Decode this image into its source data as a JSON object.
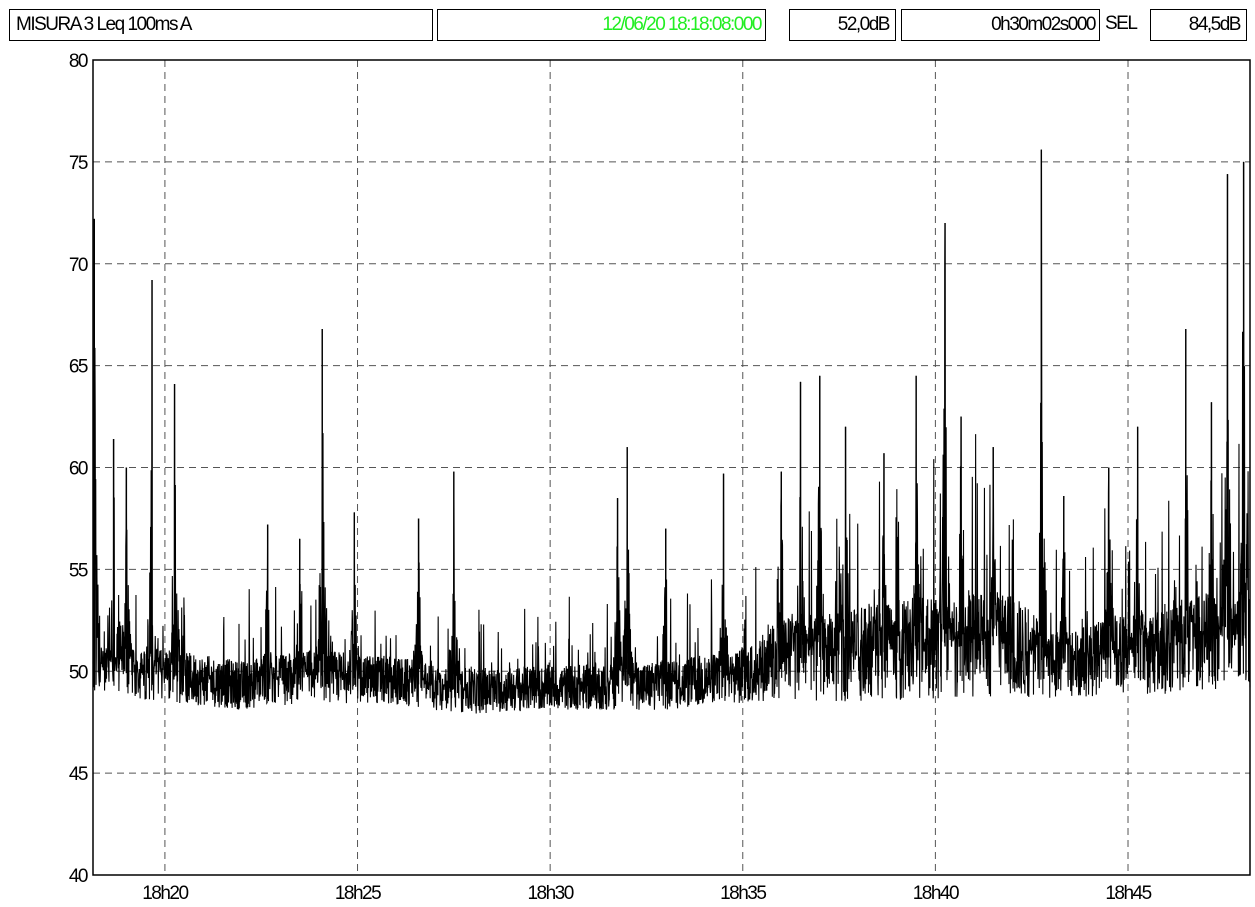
{
  "header": {
    "title": "MISURA 3   Leq 100ms  A",
    "timestamp": "12/06/20 18:18:08:000",
    "timestamp_color": "#22ee22",
    "leq_value": "52,0dB",
    "duration": "0h30m02s000",
    "sel_label": "SEL",
    "sel_value": "84,5dB"
  },
  "chart_data": {
    "type": "line",
    "title": "MISURA 3   Leq 100ms  A",
    "xlabel": "",
    "ylabel": "",
    "ylim": [
      40,
      80
    ],
    "grid": true,
    "grid_style": "dashed",
    "line_color": "#000000",
    "x_range": [
      "18:18:08",
      "18:48:10"
    ],
    "y_ticks": [
      "40",
      "45",
      "50",
      "55",
      "60",
      "65",
      "70",
      "75",
      "80"
    ],
    "x_ticks": [
      {
        "time": "18:20:00",
        "label": "18h20"
      },
      {
        "time": "18:25:00",
        "label": "18h25"
      },
      {
        "time": "18:30:00",
        "label": "18h30"
      },
      {
        "time": "18:35:00",
        "label": "18h35"
      },
      {
        "time": "18:40:00",
        "label": "18h40"
      },
      {
        "time": "18:45:00",
        "label": "18h45"
      }
    ],
    "series": [
      {
        "name": "",
        "baseline_envelope": [
          {
            "t": "18:18:08",
            "mean": 50.0,
            "spread": 1.2
          },
          {
            "t": "18:20:00",
            "mean": 49.8,
            "spread": 1.3
          },
          {
            "t": "18:22:00",
            "mean": 49.3,
            "spread": 1.2
          },
          {
            "t": "18:24:00",
            "mean": 49.8,
            "spread": 1.3
          },
          {
            "t": "18:26:00",
            "mean": 49.5,
            "spread": 1.2
          },
          {
            "t": "18:28:00",
            "mean": 49.0,
            "spread": 1.1
          },
          {
            "t": "18:30:00",
            "mean": 49.2,
            "spread": 1.1
          },
          {
            "t": "18:33:00",
            "mean": 49.3,
            "spread": 1.2
          },
          {
            "t": "18:35:00",
            "mean": 49.8,
            "spread": 1.4
          },
          {
            "t": "18:36:00",
            "mean": 50.6,
            "spread": 2.0
          },
          {
            "t": "18:38:00",
            "mean": 50.8,
            "spread": 2.3
          },
          {
            "t": "18:40:00",
            "mean": 51.2,
            "spread": 2.6
          },
          {
            "t": "18:42:00",
            "mean": 51.3,
            "spread": 2.6
          },
          {
            "t": "18:43:00",
            "mean": 50.3,
            "spread": 1.6
          },
          {
            "t": "18:45:00",
            "mean": 50.8,
            "spread": 2.0
          },
          {
            "t": "18:47:00",
            "mean": 51.5,
            "spread": 2.5
          },
          {
            "t": "18:48:10",
            "mean": 51.8,
            "spread": 2.6
          }
        ],
        "peaks": [
          {
            "t": "18:18:10",
            "v": 72.2
          },
          {
            "t": "18:18:40",
            "v": 61.4
          },
          {
            "t": "18:19:00",
            "v": 60.0
          },
          {
            "t": "18:19:40",
            "v": 69.2
          },
          {
            "t": "18:20:15",
            "v": 64.1
          },
          {
            "t": "18:22:40",
            "v": 57.2
          },
          {
            "t": "18:23:30",
            "v": 56.5
          },
          {
            "t": "18:24:05",
            "v": 66.8
          },
          {
            "t": "18:24:55",
            "v": 57.8
          },
          {
            "t": "18:26:35",
            "v": 57.5
          },
          {
            "t": "18:27:30",
            "v": 59.8
          },
          {
            "t": "18:31:45",
            "v": 58.5
          },
          {
            "t": "18:32:00",
            "v": 61.0
          },
          {
            "t": "18:33:00",
            "v": 57.0
          },
          {
            "t": "18:34:30",
            "v": 59.7
          },
          {
            "t": "18:36:00",
            "v": 59.8
          },
          {
            "t": "18:36:30",
            "v": 64.2
          },
          {
            "t": "18:37:00",
            "v": 64.5
          },
          {
            "t": "18:37:40",
            "v": 62.0
          },
          {
            "t": "18:38:40",
            "v": 60.7
          },
          {
            "t": "18:39:30",
            "v": 64.5
          },
          {
            "t": "18:40:15",
            "v": 72.0
          },
          {
            "t": "18:40:40",
            "v": 62.5
          },
          {
            "t": "18:41:30",
            "v": 61.0
          },
          {
            "t": "18:42:45",
            "v": 75.6
          },
          {
            "t": "18:43:20",
            "v": 58.6
          },
          {
            "t": "18:44:30",
            "v": 60.0
          },
          {
            "t": "18:45:15",
            "v": 62.0
          },
          {
            "t": "18:46:30",
            "v": 66.8
          },
          {
            "t": "18:47:10",
            "v": 63.2
          },
          {
            "t": "18:47:35",
            "v": 74.4
          },
          {
            "t": "18:48:00",
            "v": 75.0
          }
        ]
      }
    ]
  }
}
